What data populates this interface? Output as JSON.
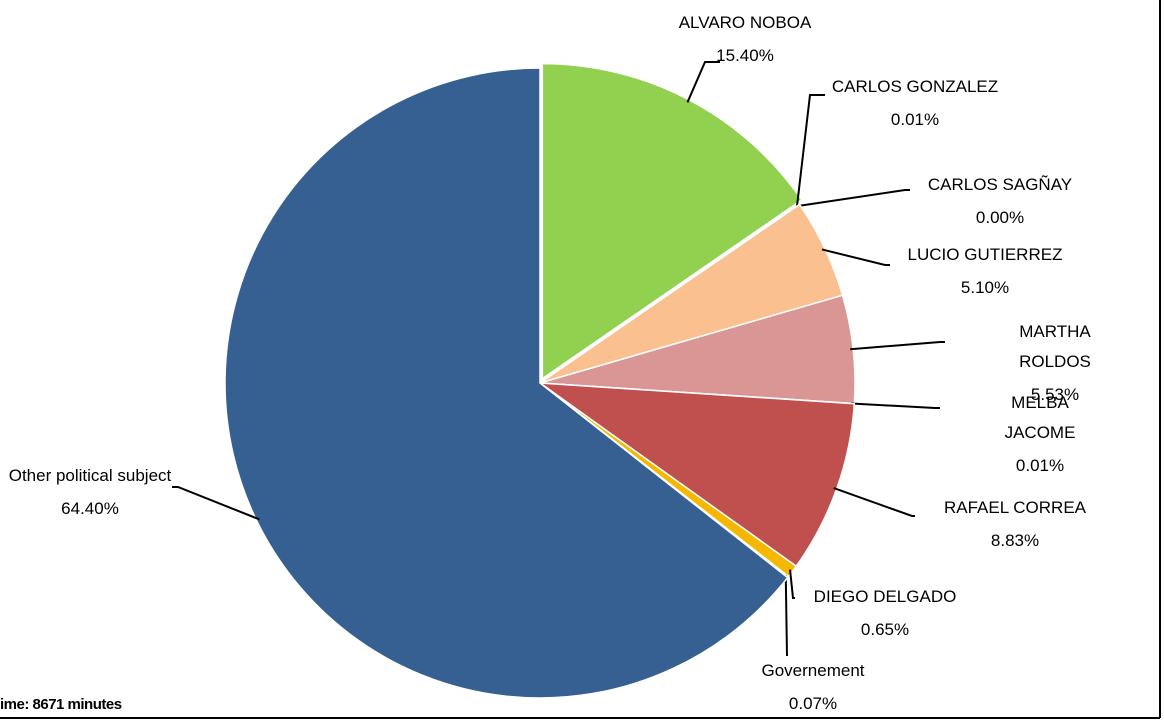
{
  "chart_data": {
    "type": "pie",
    "categories": [
      "ALVARO NOBOA",
      "CARLOS GONZALEZ",
      "CARLOS SAGÑAY",
      "LUCIO GUTIERREZ",
      "MARTHA ROLDOS",
      "MELBA JACOME",
      "RAFAEL CORREA",
      "DIEGO DELGADO",
      "Governement",
      "Other political subject"
    ],
    "values": [
      15.4,
      0.01,
      0.0,
      5.1,
      5.53,
      0.01,
      8.83,
      0.65,
      0.07,
      64.4
    ],
    "value_labels": [
      "15.40%",
      "0.01%",
      "0.00%",
      "5.10%",
      "5.53%",
      "0.01%",
      "8.83%",
      "0.65%",
      "0.07%",
      "64.40%"
    ],
    "colors": [
      "#92d050",
      "#4f81bd",
      "#8064a2",
      "#fac090",
      "#d99694",
      "#c0504d",
      "#c0504d",
      "#f5b800",
      "#4bacc6",
      "#376092"
    ],
    "footnote": "ime: 8671 minutes"
  }
}
